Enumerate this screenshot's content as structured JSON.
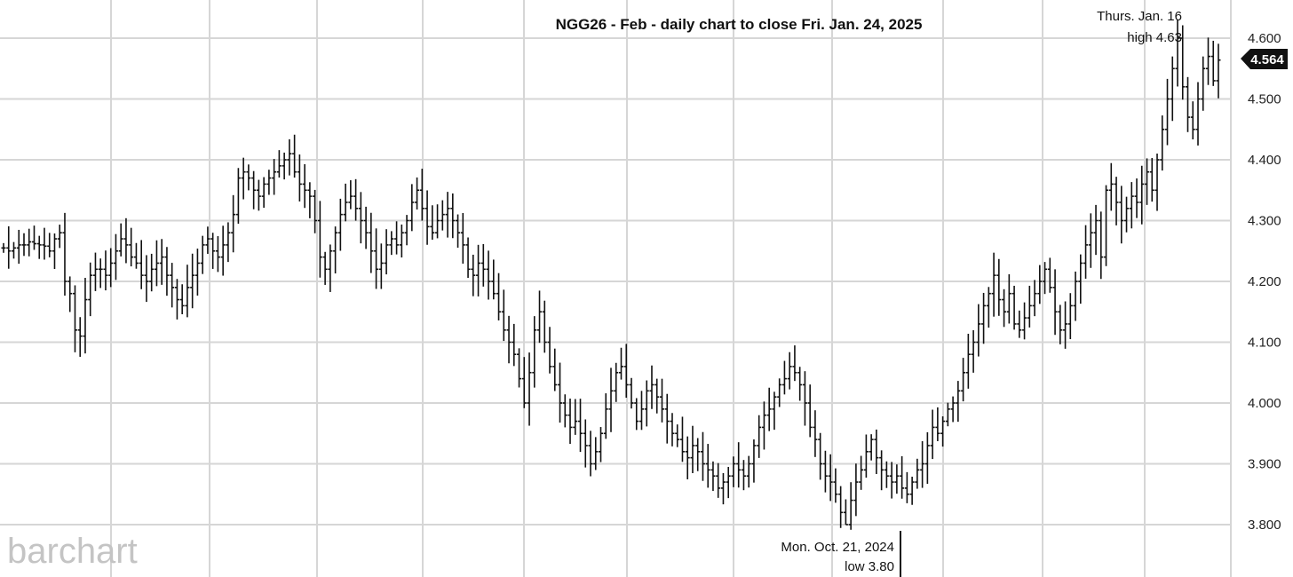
{
  "chart_data": {
    "type": "ohlc",
    "title": "NGG26 - Feb - daily chart to close Fri. Jan. 24, 2025",
    "y_ticks": [
      "4.600",
      "4.500",
      "4.400",
      "4.300",
      "4.200",
      "4.100",
      "4.000",
      "3.900",
      "3.800"
    ],
    "ylim": [
      3.74,
      4.66
    ],
    "grid": true,
    "last_price": "4.564",
    "watermark": "barchart",
    "annotations": {
      "high": {
        "line1": "Thurs. Jan. 16",
        "line2": "high 4.63",
        "value": 4.63
      },
      "low": {
        "line1": "Mon. Oct. 21, 2024",
        "line2": "low 3.80",
        "value": 3.8
      }
    },
    "series": [
      {
        "close_profile": [
          4.255,
          4.25,
          4.255,
          4.26,
          4.26,
          4.265,
          4.262,
          4.26,
          4.258,
          4.25,
          4.27,
          4.28,
          4.2,
          4.18,
          4.12,
          4.11,
          4.17,
          4.21,
          4.22,
          4.22,
          4.21,
          4.23,
          4.25,
          4.27,
          4.26,
          4.24,
          4.23,
          4.21,
          4.2,
          4.22,
          4.23,
          4.24,
          4.21,
          4.19,
          4.17,
          4.16,
          4.19,
          4.21,
          4.23,
          4.26,
          4.27,
          4.25,
          4.24,
          4.26,
          4.28,
          4.31,
          4.37,
          4.38,
          4.37,
          4.35,
          4.34,
          4.36,
          4.37,
          4.38,
          4.39,
          4.4,
          4.41,
          4.38,
          4.36,
          4.35,
          4.34,
          4.3,
          4.24,
          4.22,
          4.25,
          4.28,
          4.31,
          4.33,
          4.34,
          4.32,
          4.3,
          4.28,
          4.25,
          4.22,
          4.23,
          4.26,
          4.27,
          4.26,
          4.28,
          4.3,
          4.33,
          4.35,
          4.32,
          4.29,
          4.28,
          4.3,
          4.31,
          4.32,
          4.3,
          4.28,
          4.26,
          4.22,
          4.21,
          4.23,
          4.22,
          4.2,
          4.18,
          4.15,
          4.12,
          4.1,
          4.08,
          4.04,
          4.0,
          4.05,
          4.12,
          4.15,
          4.1,
          4.06,
          4.03,
          4.0,
          3.98,
          3.96,
          3.97,
          3.95,
          3.93,
          3.9,
          3.92,
          3.95,
          3.99,
          4.02,
          4.05,
          4.06,
          4.03,
          4.0,
          3.97,
          3.99,
          4.02,
          4.03,
          4.01,
          3.99,
          3.97,
          3.95,
          3.94,
          3.92,
          3.91,
          3.93,
          3.92,
          3.9,
          3.89,
          3.88,
          3.86,
          3.87,
          3.88,
          3.9,
          3.89,
          3.88,
          3.9,
          3.93,
          3.96,
          3.98,
          3.99,
          4.01,
          4.03,
          4.04,
          4.06,
          4.05,
          4.03,
          4.0,
          3.96,
          3.94,
          3.9,
          3.88,
          3.87,
          3.85,
          3.82,
          3.8,
          3.84,
          3.87,
          3.89,
          3.92,
          3.94,
          3.91,
          3.89,
          3.88,
          3.87,
          3.88,
          3.86,
          3.85,
          3.87,
          3.89,
          3.9,
          3.93,
          3.96,
          3.95,
          3.97,
          3.99,
          4.0,
          4.02,
          4.05,
          4.08,
          4.1,
          4.13,
          4.16,
          4.18,
          4.21,
          4.17,
          4.15,
          4.18,
          4.13,
          4.12,
          4.14,
          4.16,
          4.18,
          4.2,
          4.22,
          4.19,
          4.15,
          4.12,
          4.13,
          4.16,
          4.2,
          4.23,
          4.26,
          4.28,
          4.3,
          4.24,
          4.35,
          4.36,
          4.33,
          4.3,
          4.32,
          4.34,
          4.33,
          4.36,
          4.38,
          4.35,
          4.4,
          4.45,
          4.5,
          4.55,
          4.6,
          4.52,
          4.47,
          4.45,
          4.5,
          4.55,
          4.57,
          4.53,
          4.564
        ]
      }
    ]
  }
}
